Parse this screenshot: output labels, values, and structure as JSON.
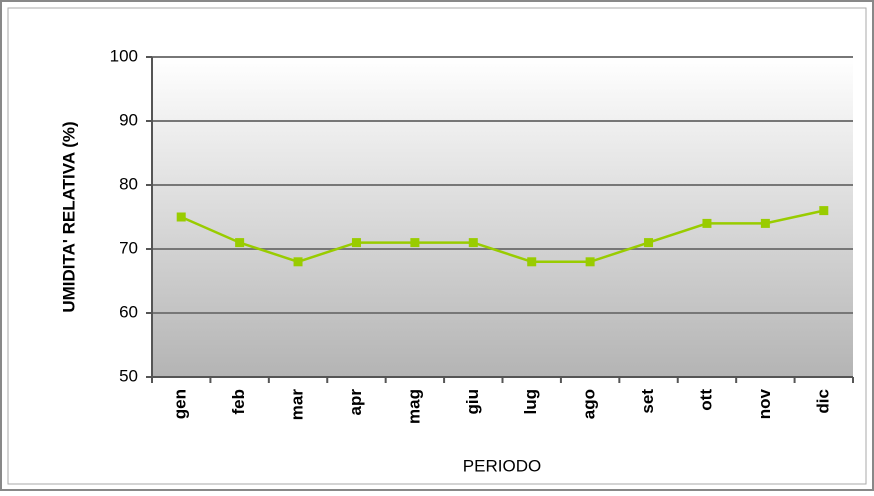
{
  "chart_data": {
    "type": "line",
    "categories": [
      "gen",
      "feb",
      "mar",
      "apr",
      "mag",
      "giu",
      "lug",
      "ago",
      "set",
      "ott",
      "nov",
      "dic"
    ],
    "values": [
      75,
      71,
      68,
      71,
      71,
      71,
      68,
      68,
      71,
      74,
      74,
      76
    ],
    "color": "#99cc00",
    "ylim": [
      50,
      100
    ],
    "yticks": [
      50,
      60,
      70,
      80,
      90,
      100
    ],
    "grid": true,
    "y_label": "UMIDITA' RELATIVA (%)",
    "x_label": "PERIODO"
  }
}
